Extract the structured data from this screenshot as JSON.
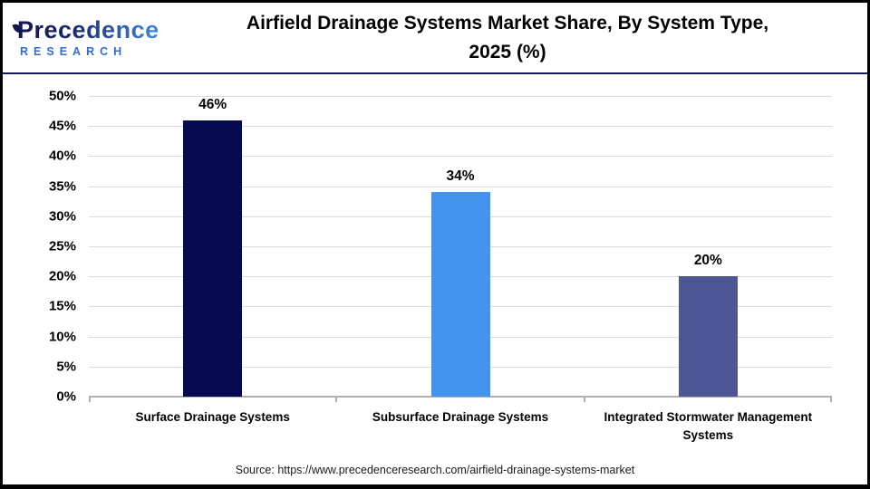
{
  "header": {
    "logo": {
      "wordmark": "Precedence",
      "subtext": "RESEARCH"
    },
    "title_line1": "Airfield Drainage Systems Market Share, By System Type,",
    "title_line2": "2025 (%)"
  },
  "chart_data": {
    "type": "bar",
    "title": "Airfield Drainage Systems Market Share, By System Type, 2025 (%)",
    "categories": [
      "Surface Drainage Systems",
      "Subsurface Drainage Systems",
      "Integrated Stormwater Management Systems"
    ],
    "values": [
      46,
      34,
      20
    ],
    "value_labels": [
      "46%",
      "34%",
      "20%"
    ],
    "bar_colors": [
      "#060A50",
      "#4493EC",
      "#4D5795"
    ],
    "xlabel": "",
    "ylabel": "",
    "ylim": [
      0,
      50
    ],
    "ytick_step": 5,
    "yticks": [
      "0%",
      "5%",
      "10%",
      "15%",
      "20%",
      "25%",
      "30%",
      "35%",
      "40%",
      "45%",
      "50%"
    ],
    "grid": true,
    "legend": false
  },
  "footer": {
    "source": "Source: https://www.precedenceresearch.com/airfield-drainage-systems-market"
  },
  "colors": {
    "brand_navy": "#10164f",
    "brand_blue": "#3f8cdf",
    "header_divider": "#151b54",
    "gridline": "#dcdcdc",
    "axis": "#b0b0b0"
  }
}
